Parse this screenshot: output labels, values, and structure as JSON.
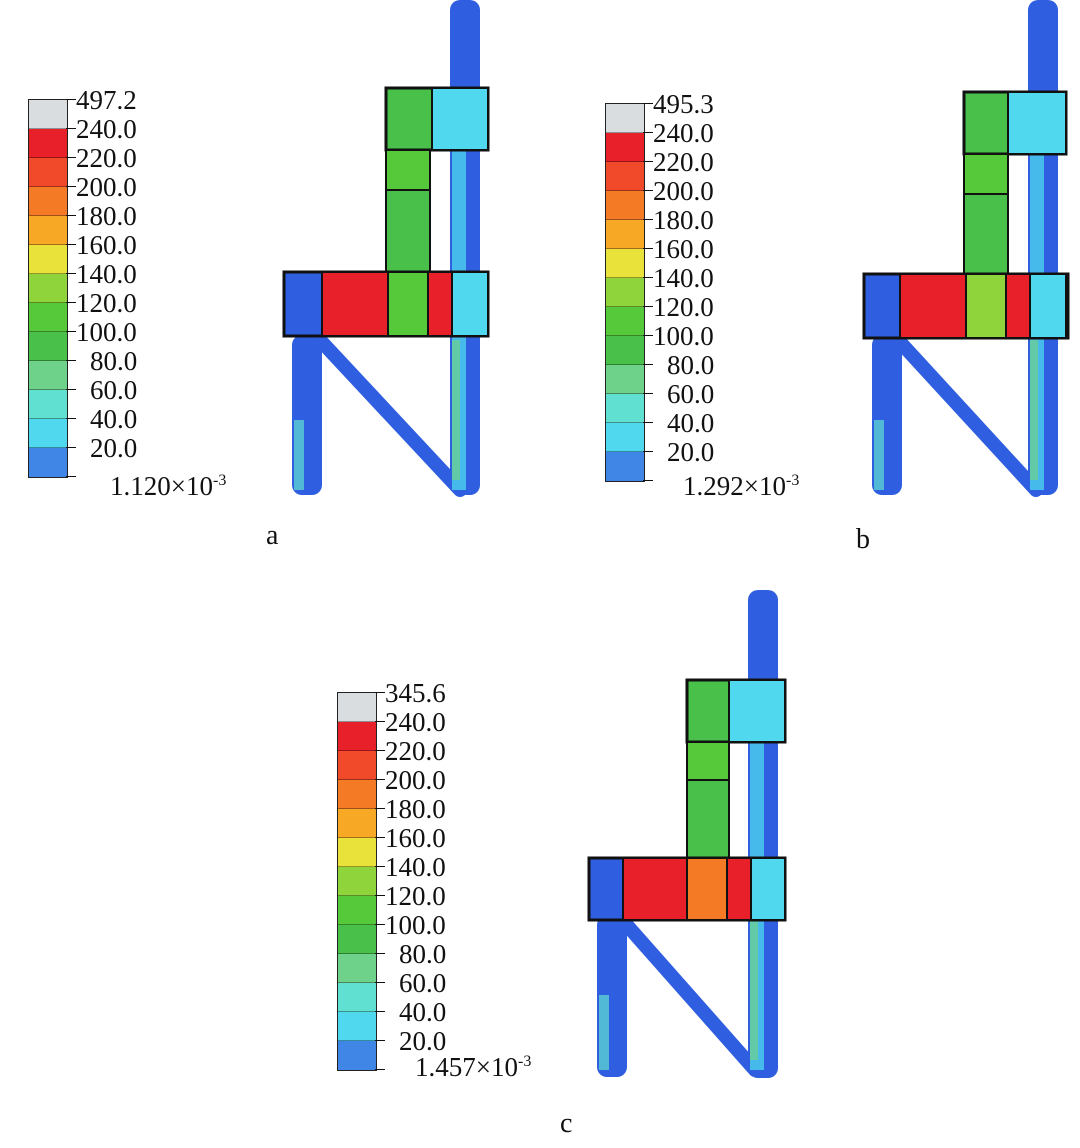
{
  "colors": {
    "max": "#d9dde0",
    "c240": "#e8202a",
    "c220": "#f04a2a",
    "c200": "#f57a25",
    "c180": "#f7a825",
    "c160": "#e8e23a",
    "c140": "#8fd43a",
    "c120": "#55c93a",
    "c100": "#48c04a",
    "c80": "#6fd28a",
    "c60": "#5fe0d0",
    "c40": "#4fd8ee",
    "c20": "#3f86e6",
    "c0": "#2f5fe0"
  },
  "panels": [
    {
      "label": "a",
      "max_label": "497.2",
      "min_label": "1.120×10",
      "min_exp": "-3",
      "ticks": [
        "240.0",
        "220.0",
        "200.0",
        "180.0",
        "160.0",
        "140.0",
        "120.0",
        "100.0",
        "80.0",
        "60.0",
        "40.0",
        "20.0"
      ]
    },
    {
      "label": "b",
      "max_label": "495.3",
      "min_label": "1.292×10",
      "min_exp": "-3",
      "ticks": [
        "240.0",
        "220.0",
        "200.0",
        "180.0",
        "160.0",
        "140.0",
        "120.0",
        "100.0",
        "80.0",
        "60.0",
        "40.0",
        "20.0"
      ]
    },
    {
      "label": "c",
      "max_label": "345.6",
      "min_label": "1.457×10",
      "min_exp": "-3",
      "ticks": [
        "240.0",
        "220.0",
        "200.0",
        "180.0",
        "160.0",
        "140.0",
        "120.0",
        "100.0",
        "80.0",
        "60.0",
        "40.0",
        "20.0"
      ]
    }
  ]
}
